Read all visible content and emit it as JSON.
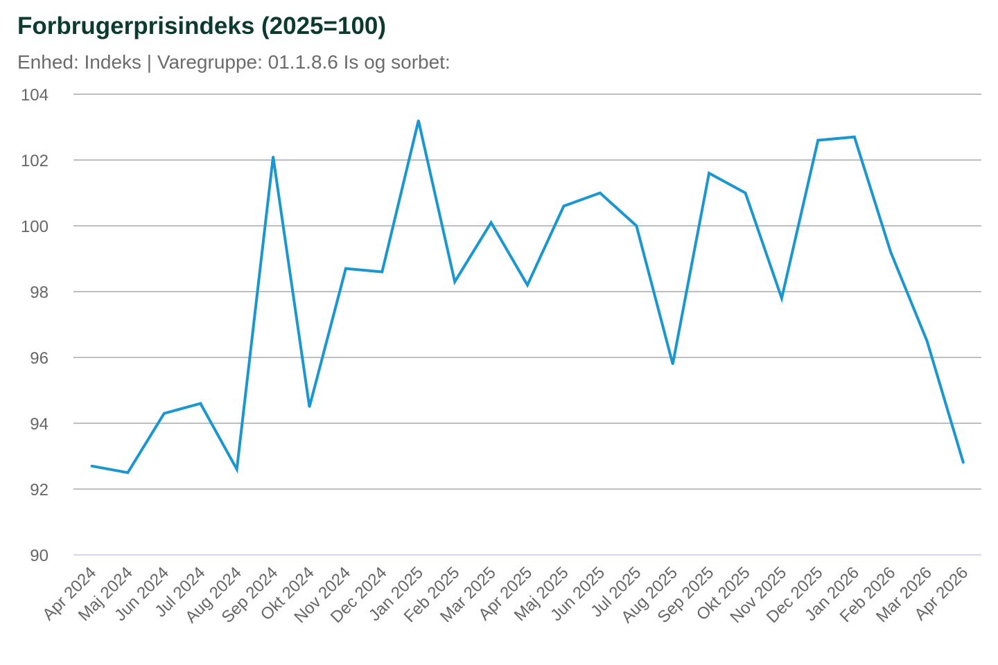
{
  "title": "Forbrugerprisindeks (2025=100)",
  "subtitle": "Enhed: Indeks | Varegruppe: 01.1.8.6 Is og sorbet:",
  "colors": {
    "line": "#1a96d0",
    "grid": "#b9bfc3",
    "baseline": "#d4d4ee",
    "title": "#0b3b2e",
    "tick": "#666666"
  },
  "chart_data": {
    "type": "line",
    "title": "Forbrugerprisindeks (2025=100)",
    "subtitle": "Enhed: Indeks | Varegruppe: 01.1.8.6 Is og sorbet:",
    "xlabel": "",
    "ylabel": "",
    "ylim": [
      90,
      104
    ],
    "yticks": [
      90,
      92,
      94,
      96,
      98,
      100,
      102,
      104
    ],
    "grid": true,
    "categories": [
      "Apr 2024",
      "Maj 2024",
      "Jun 2024",
      "Jul 2024",
      "Aug 2024",
      "Sep 2024",
      "Okt 2024",
      "Nov 2024",
      "Dec 2024",
      "Jan 2025",
      "Feb 2025",
      "Mar 2025",
      "Apr 2025",
      "Maj 2025",
      "Jun 2025",
      "Jul 2025",
      "Aug 2025",
      "Sep 2025",
      "Okt 2025",
      "Nov 2025",
      "Dec 2025",
      "Jan 2026",
      "Feb 2026",
      "Mar 2026",
      "Apr 2026"
    ],
    "series": [
      {
        "values": [
          92.7,
          92.5,
          94.3,
          94.6,
          92.6,
          102.1,
          94.5,
          98.7,
          98.6,
          103.2,
          98.3,
          100.1,
          98.2,
          100.6,
          101.0,
          100.0,
          95.8,
          101.6,
          101.0,
          97.8,
          102.6,
          102.7,
          99.2,
          96.5,
          92.8
        ]
      }
    ]
  }
}
